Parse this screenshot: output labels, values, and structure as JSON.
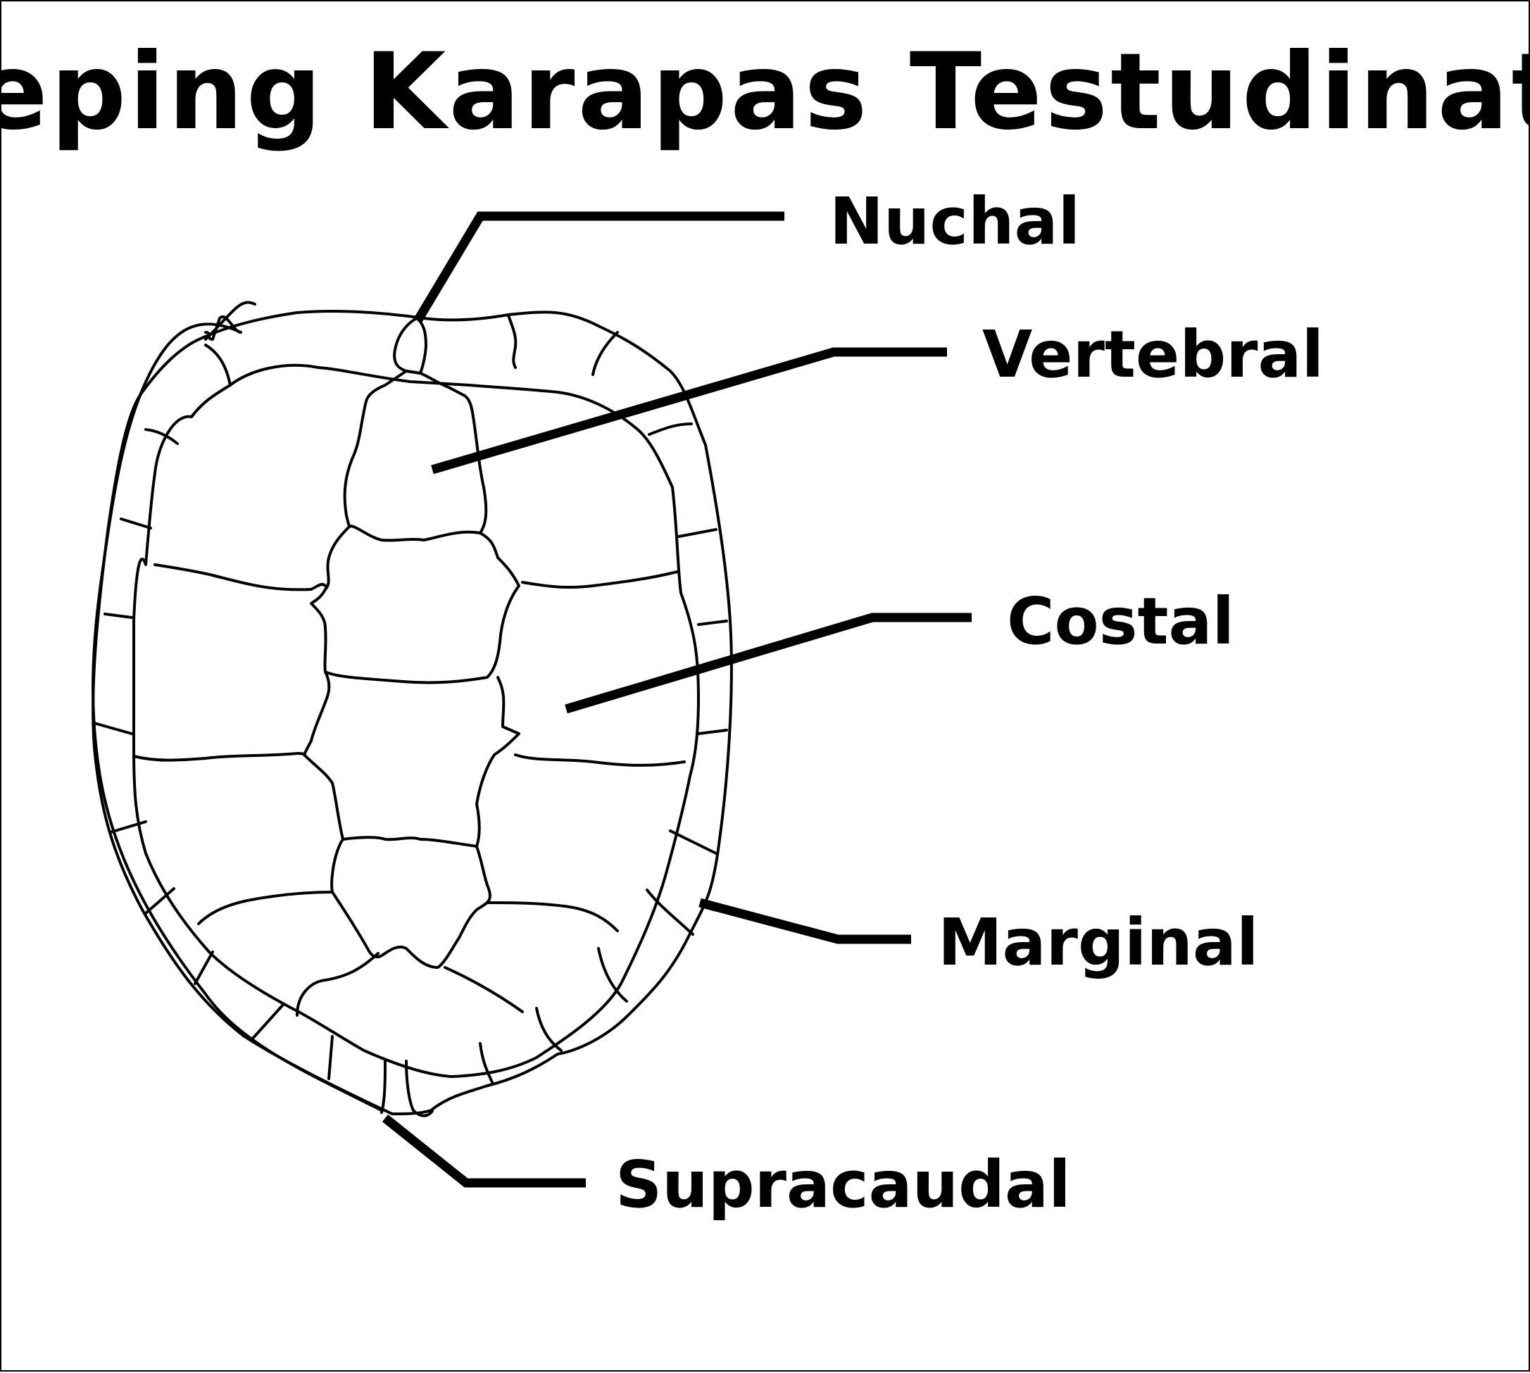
{
  "diagram": {
    "title": "Keping Karapas Testudinata",
    "labels": [
      {
        "key": "nuchal",
        "text": "Nuchal"
      },
      {
        "key": "vertebral",
        "text": "Vertebral"
      },
      {
        "key": "costal",
        "text": "Costal"
      },
      {
        "key": "marginal",
        "text": "Marginal"
      },
      {
        "key": "supracaudal",
        "text": "Supracaudal"
      }
    ],
    "colors": {
      "line": "#000000",
      "background": "#ffffff"
    }
  }
}
